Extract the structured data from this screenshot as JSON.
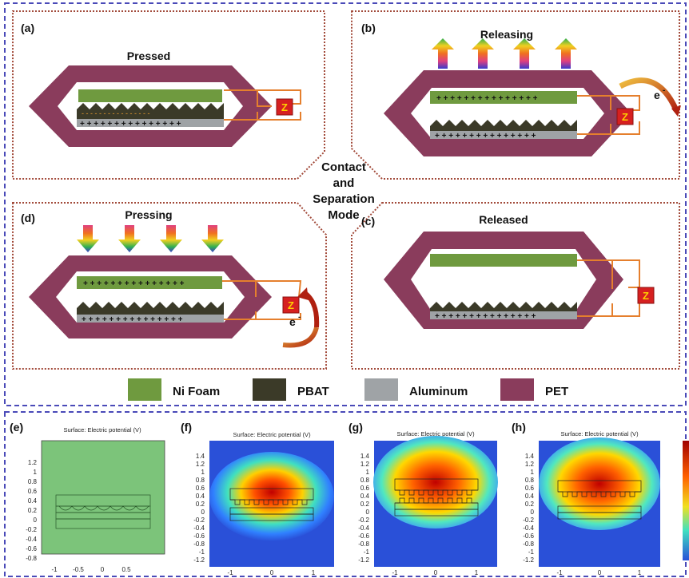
{
  "center_label": [
    "Contact",
    "and",
    "Separation",
    "Mode"
  ],
  "panels": {
    "a": {
      "letter": "(a)",
      "title": "Pressed",
      "load": "Z"
    },
    "b": {
      "letter": "(b)",
      "title": "Releasing",
      "load": "Z",
      "electron": "e",
      "electron_sup": "-"
    },
    "c": {
      "letter": "(c)",
      "title": "Released",
      "load": "Z"
    },
    "d": {
      "letter": "(d)",
      "title": "Pressing",
      "load": "Z",
      "electron": "e",
      "electron_sup": "-"
    }
  },
  "legend": [
    {
      "label": "Ni Foam",
      "color": "#6f9a3f"
    },
    {
      "label": "PBAT",
      "color": "#3b3a28"
    },
    {
      "label": "Aluminum",
      "color": "#9fa3a6"
    },
    {
      "label": "PET",
      "color": "#8a3c5c"
    }
  ],
  "colors": {
    "pet": "#8a3c5c",
    "ni_foam": "#6f9a3f",
    "pbat": "#3b3a28",
    "aluminum": "#9fa3a6",
    "border_red": "#a24a3a",
    "border_blue": "#4a4ab8",
    "wire": "#e57f2d",
    "load_box": "#d62020"
  },
  "simulations": [
    {
      "letter": "(e)",
      "title": "Surface: Electric potential (V)",
      "y_ticks": [
        "1.2",
        "1",
        "0.8",
        "0.6",
        "0.4",
        "0.2",
        "0",
        "-0.2",
        "-0.4",
        "-0.6",
        "-0.8"
      ],
      "x_ticks": [
        "-1",
        "-0.5",
        "0",
        "0.5"
      ]
    },
    {
      "letter": "(f)",
      "title": "Surface: Electric potential (V)",
      "y_ticks": [
        "1.4",
        "1.2",
        "1",
        "0.8",
        "0.6",
        "0.4",
        "0.2",
        "0",
        "-0.2",
        "-0.4",
        "-0.6",
        "-0.8",
        "-1",
        "-1.2"
      ],
      "x_ticks": [
        "-1",
        "0",
        "1"
      ]
    },
    {
      "letter": "(g)",
      "title": "Surface: Electric potential (V)",
      "y_ticks": [
        "1.4",
        "1.2",
        "1",
        "0.8",
        "0.6",
        "0.4",
        "0.2",
        "0",
        "-0.2",
        "-0.4",
        "-0.6",
        "-0.8",
        "-1",
        "-1.2"
      ],
      "x_ticks": [
        "-1",
        "0",
        "1"
      ]
    },
    {
      "letter": "(h)",
      "title": "Surface: Electric potential (V)",
      "y_ticks": [
        "1.4",
        "1.2",
        "1",
        "0.8",
        "0.6",
        "0.4",
        "0.2",
        "0",
        "-0.2",
        "-0.4",
        "-0.6",
        "-0.8",
        "-1",
        "-1.2"
      ],
      "x_ticks": [
        "-1",
        "0",
        "1"
      ]
    }
  ]
}
